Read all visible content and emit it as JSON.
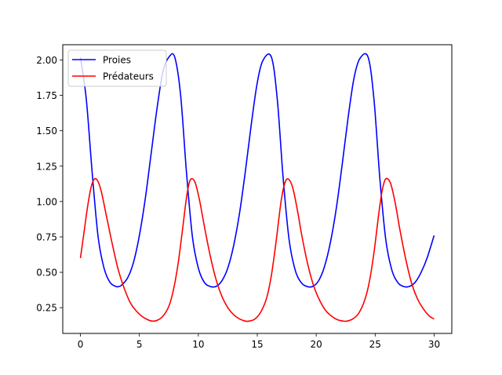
{
  "chart_data": {
    "type": "line",
    "title": "",
    "xlabel": "",
    "ylabel": "",
    "xlim": [
      -1.5,
      31.5
    ],
    "ylim": [
      0.068,
      2.108
    ],
    "grid": false,
    "legend_placement": "top-left",
    "xticks": [
      0,
      5,
      10,
      15,
      20,
      25,
      30
    ],
    "xtick_labels": [
      "0",
      "5",
      "10",
      "15",
      "20",
      "25",
      "30"
    ],
    "yticks": [
      0.25,
      0.5,
      0.75,
      1.0,
      1.25,
      1.5,
      1.75,
      2.0
    ],
    "ytick_labels": [
      "0.25",
      "0.50",
      "0.75",
      "1.00",
      "1.25",
      "1.50",
      "1.75",
      "2.00"
    ],
    "series": [
      {
        "name": "Proies",
        "color": "#0000ff",
        "x": [
          0,
          0.5,
          1,
          1.5,
          2,
          2.5,
          3,
          3.3,
          3.5,
          4,
          4.5,
          5,
          5.5,
          6,
          6.5,
          7,
          7.5,
          8,
          8.5,
          9,
          9.5,
          10,
          10.5,
          11,
          11.5,
          12,
          12.5,
          13,
          13.5,
          14,
          14.5,
          15,
          15.5,
          16.2,
          16.7,
          17.2,
          17.7,
          18.2,
          18.7,
          19.2,
          19.7,
          20.2,
          20.7,
          21.2,
          21.7,
          22.2,
          22.7,
          23.2,
          23.7,
          24.4,
          24.9,
          25.4,
          25.9,
          26.4,
          26.9,
          27.4,
          27.9,
          28.4,
          28.9,
          29.4,
          30
        ],
        "y": [
          2.02,
          1.72,
          1.2,
          0.75,
          0.53,
          0.43,
          0.4,
          0.4,
          0.41,
          0.46,
          0.57,
          0.76,
          1.02,
          1.34,
          1.66,
          1.92,
          2.02,
          2.02,
          1.75,
          1.2,
          0.75,
          0.53,
          0.43,
          0.4,
          0.4,
          0.44,
          0.53,
          0.69,
          0.92,
          1.22,
          1.55,
          1.84,
          2.0,
          2.02,
          1.72,
          1.16,
          0.73,
          0.52,
          0.43,
          0.4,
          0.4,
          0.44,
          0.54,
          0.71,
          0.95,
          1.26,
          1.59,
          1.87,
          2.01,
          2.02,
          1.72,
          1.16,
          0.73,
          0.52,
          0.43,
          0.4,
          0.4,
          0.43,
          0.5,
          0.6,
          0.76
        ]
      },
      {
        "name": "Prédateurs",
        "color": "#ff0000",
        "x": [
          0,
          0.3,
          0.6,
          0.9,
          1.2,
          1.5,
          1.8,
          2.2,
          2.7,
          3.2,
          3.7,
          4.2,
          4.7,
          5.2,
          5.7,
          6.1,
          6.5,
          7,
          7.5,
          7.9,
          8.3,
          8.7,
          9,
          9.3,
          9.7,
          10.1,
          10.5,
          11,
          11.5,
          12,
          12.5,
          13,
          13.5,
          14,
          14.3,
          14.8,
          15.3,
          15.8,
          16.2,
          16.6,
          17,
          17.3,
          17.6,
          18,
          18.4,
          18.8,
          19.3,
          19.8,
          20.3,
          20.8,
          21.3,
          21.8,
          22.3,
          22.6,
          23.1,
          23.6,
          24.1,
          24.5,
          24.9,
          25.3,
          25.6,
          25.9,
          26.3,
          26.7,
          27.1,
          27.6,
          28.1,
          28.6,
          29.1,
          29.6,
          30
        ],
        "y": [
          0.6,
          0.78,
          0.96,
          1.1,
          1.16,
          1.14,
          1.06,
          0.9,
          0.7,
          0.52,
          0.39,
          0.29,
          0.23,
          0.19,
          0.165,
          0.155,
          0.16,
          0.19,
          0.26,
          0.38,
          0.57,
          0.83,
          1.03,
          1.15,
          1.14,
          1.01,
          0.83,
          0.62,
          0.45,
          0.33,
          0.25,
          0.2,
          0.17,
          0.155,
          0.155,
          0.17,
          0.22,
          0.32,
          0.48,
          0.72,
          0.99,
          1.12,
          1.16,
          1.1,
          0.94,
          0.75,
          0.55,
          0.4,
          0.3,
          0.23,
          0.19,
          0.165,
          0.155,
          0.155,
          0.17,
          0.21,
          0.3,
          0.43,
          0.64,
          0.91,
          1.08,
          1.16,
          1.13,
          0.99,
          0.8,
          0.59,
          0.42,
          0.31,
          0.24,
          0.19,
          0.17
        ]
      }
    ]
  }
}
